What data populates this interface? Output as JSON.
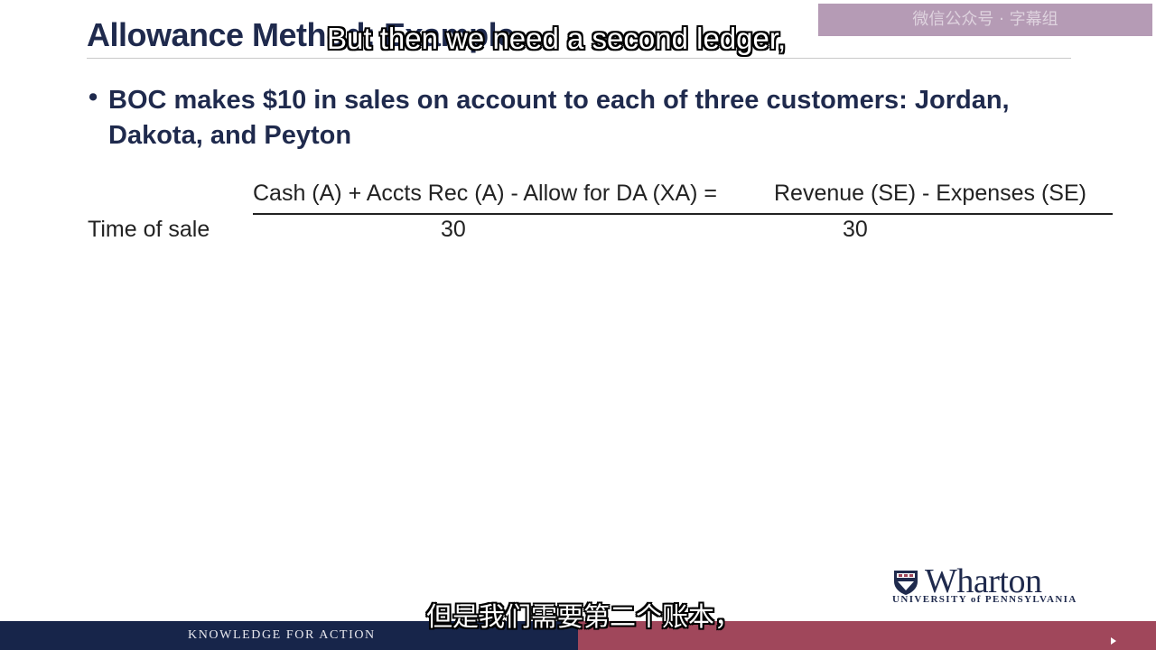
{
  "slide": {
    "title": "Allowance Method: Example",
    "bullet_marker": "•",
    "bullet_text": "BOC makes $10 in sales on account to each of three customers: Jordan, Dakota, and Peyton",
    "equation": {
      "left": "Cash (A) + Accts Rec (A) - Allow for DA (XA) =",
      "right": "Revenue (SE) - Expenses (SE)"
    },
    "rows": [
      {
        "label": "Time of sale",
        "left_value": "30",
        "right_value": "30"
      }
    ]
  },
  "subtitles": {
    "english": "But then we need a second ledger,",
    "chinese": "但是我们需要第二个账本，"
  },
  "watermark": {
    "text": "微信公众号 · 字幕组"
  },
  "logo": {
    "name": "Wharton",
    "university": "UNIVERSITY of PENNSYLVANIA",
    "colors": {
      "navy": "#1f2a4d",
      "maroon": "#a0475b"
    }
  },
  "footer": {
    "tagline": "KNOWLEDGE FOR ACTION",
    "colors": {
      "left": "#17254a",
      "right": "#a0475b"
    }
  }
}
